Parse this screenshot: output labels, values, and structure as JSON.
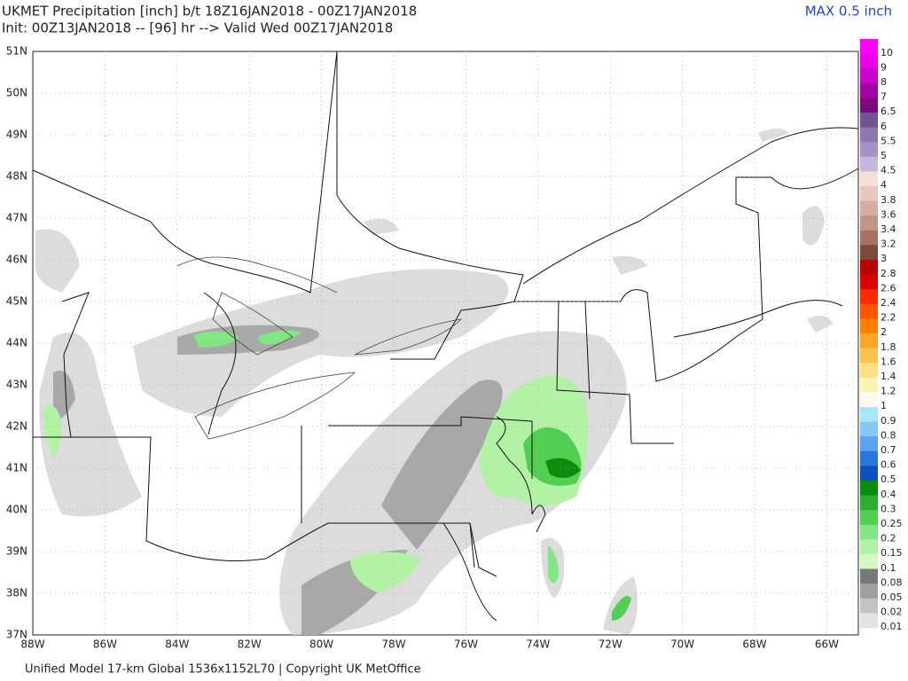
{
  "header": {
    "title": "UKMET Precipitation [inch] b/t 18Z16JAN2018 - 00Z17JAN2018",
    "subtitle": "Init: 00Z13JAN2018 -- [96] hr --> Valid Wed 00Z17JAN2018",
    "max_label": "MAX 0.5 inch"
  },
  "map": {
    "lat_labels": [
      "51N",
      "50N",
      "49N",
      "48N",
      "47N",
      "46N",
      "45N",
      "44N",
      "43N",
      "42N",
      "41N",
      "40N",
      "39N",
      "38N",
      "37N"
    ],
    "lon_labels": [
      "88W",
      "86W",
      "84W",
      "82W",
      "80W",
      "78W",
      "76W",
      "74W",
      "72W",
      "70W",
      "68W",
      "66W"
    ]
  },
  "colorbar": [
    {
      "label": "10",
      "color": "#ff00ff"
    },
    {
      "label": "9",
      "color": "#e800e8"
    },
    {
      "label": "8",
      "color": "#cc00cc"
    },
    {
      "label": "7",
      "color": "#a300a3"
    },
    {
      "label": "6.5",
      "color": "#7d0a7d"
    },
    {
      "label": "6",
      "color": "#6e5590"
    },
    {
      "label": "5.5",
      "color": "#8c78b0"
    },
    {
      "label": "5",
      "color": "#a592c8"
    },
    {
      "label": "4.5",
      "color": "#c4b8dc"
    },
    {
      "label": "4",
      "color": "#f4e0d6"
    },
    {
      "label": "3.8",
      "color": "#e8c8bd"
    },
    {
      "label": "3.6",
      "color": "#d6ada2"
    },
    {
      "label": "3.4",
      "color": "#c29488"
    },
    {
      "label": "3.2",
      "color": "#a57264"
    },
    {
      "label": "3",
      "color": "#7a4a3c"
    },
    {
      "label": "2.8",
      "color": "#b80000"
    },
    {
      "label": "2.6",
      "color": "#d80000"
    },
    {
      "label": "2.4",
      "color": "#ff2a00"
    },
    {
      "label": "2.2",
      "color": "#ff5500"
    },
    {
      "label": "2",
      "color": "#ff8000"
    },
    {
      "label": "1.8",
      "color": "#ffa526"
    },
    {
      "label": "1.6",
      "color": "#ffc34d"
    },
    {
      "label": "1.4",
      "color": "#ffe084"
    },
    {
      "label": "1.2",
      "color": "#fff3b3"
    },
    {
      "label": "1",
      "color": "#fbfbf0"
    },
    {
      "label": "0.9",
      "color": "#a6e8f4"
    },
    {
      "label": "0.8",
      "color": "#84c8f8"
    },
    {
      "label": "0.7",
      "color": "#5ca2f0"
    },
    {
      "label": "0.6",
      "color": "#2a76dc"
    },
    {
      "label": "0.5",
      "color": "#0f50be"
    },
    {
      "label": "0.4",
      "color": "#0c8c0c"
    },
    {
      "label": "0.3",
      "color": "#2eae2e"
    },
    {
      "label": "0.25",
      "color": "#52cf52"
    },
    {
      "label": "0.2",
      "color": "#82e682"
    },
    {
      "label": "0.15",
      "color": "#b2f2a4"
    },
    {
      "label": "0.1",
      "color": "#d4f7c6"
    },
    {
      "label": "0.08",
      "color": "#787878"
    },
    {
      "label": "0.05",
      "color": "#a0a0a0"
    },
    {
      "label": "0.02",
      "color": "#c2c2c2"
    },
    {
      "label": "0.01",
      "color": "#e2e2e2"
    }
  ],
  "footer": "Unified Model 17-km Global 1536x1152L70 | Copyright UK MetOffice"
}
